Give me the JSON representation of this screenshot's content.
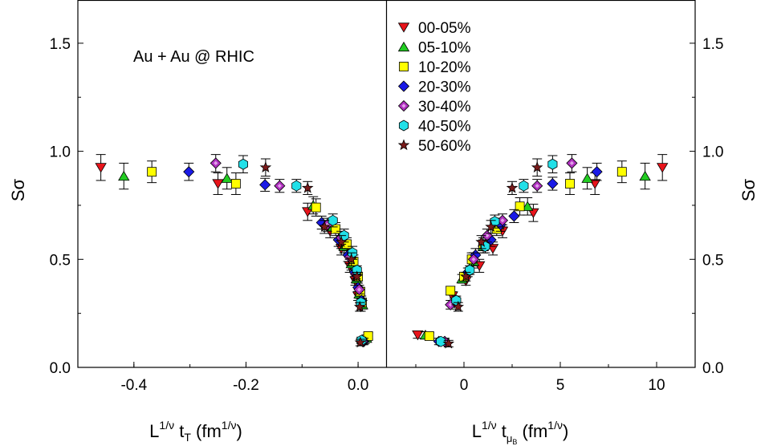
{
  "chart_data": [
    {
      "type": "scatter",
      "panel": "left",
      "xlabel": "L^{1/ν} t_T (fm^{1/ν})",
      "ylabel": "Sσ",
      "xlim": [
        -0.5,
        0.05
      ],
      "ylim": [
        0.0,
        1.7
      ],
      "xticks": [
        "-0.4",
        "-0.2",
        "0.0"
      ],
      "xtick_values": [
        -0.4,
        -0.2,
        0.0
      ],
      "yticks": [
        "0.0",
        "0.5",
        "1.0",
        "1.5"
      ],
      "ytick_values": [
        0.0,
        0.5,
        1.0,
        1.5
      ],
      "annotation": "Au + Au @ RHIC",
      "series": [
        {
          "name": "00-05%",
          "points": [
            [
              -0.459,
              0.925,
              0.06
            ],
            [
              -0.25,
              0.85,
              0.05
            ],
            [
              -0.09,
              0.72,
              0.04
            ],
            [
              -0.05,
              0.63,
              0.03
            ],
            [
              -0.03,
              0.55,
              0.03
            ],
            [
              -0.015,
              0.47,
              0.03
            ],
            [
              -0.005,
              0.4,
              0.02
            ],
            [
              0.0,
              0.33,
              0.02
            ],
            [
              0.005,
              0.28,
              0.02
            ],
            [
              0.012,
              0.125,
              0.015
            ]
          ]
        },
        {
          "name": "05-10%",
          "points": [
            [
              -0.418,
              0.885,
              0.06
            ],
            [
              -0.234,
              0.875,
              0.05
            ],
            [
              -0.08,
              0.75,
              0.04
            ],
            [
              -0.045,
              0.65,
              0.03
            ],
            [
              -0.025,
              0.56,
              0.03
            ],
            [
              -0.012,
              0.48,
              0.03
            ],
            [
              -0.003,
              0.41,
              0.02
            ],
            [
              0.002,
              0.34,
              0.02
            ],
            [
              0.008,
              0.29,
              0.02
            ],
            [
              0.015,
              0.135,
              0.015
            ]
          ]
        },
        {
          "name": "10-20%",
          "points": [
            [
              -0.368,
              0.905,
              0.05
            ],
            [
              -0.218,
              0.85,
              0.05
            ],
            [
              -0.075,
              0.74,
              0.04
            ],
            [
              -0.04,
              0.64,
              0.03
            ],
            [
              -0.02,
              0.57,
              0.03
            ],
            [
              -0.008,
              0.49,
              0.03
            ],
            [
              0.0,
              0.42,
              0.02
            ],
            [
              0.004,
              0.35,
              0.02
            ],
            [
              0.007,
              0.3,
              0.02
            ],
            [
              0.018,
              0.145,
              0.015
            ]
          ]
        },
        {
          "name": "20-30%",
          "points": [
            [
              -0.302,
              0.905,
              0.04
            ],
            [
              -0.166,
              0.845,
              0.03
            ],
            [
              -0.065,
              0.67,
              0.03
            ],
            [
              -0.035,
              0.59,
              0.03
            ],
            [
              -0.018,
              0.52,
              0.03
            ],
            [
              -0.006,
              0.44,
              0.02
            ],
            [
              0.0,
              0.37,
              0.02
            ],
            [
              0.006,
              0.31,
              0.02
            ],
            [
              0.01,
              0.12,
              0.015
            ]
          ]
        },
        {
          "name": "30-40%",
          "points": [
            [
              -0.254,
              0.945,
              0.04
            ],
            [
              -0.14,
              0.84,
              0.03
            ],
            [
              -0.055,
              0.66,
              0.03
            ],
            [
              -0.03,
              0.6,
              0.03
            ],
            [
              -0.015,
              0.51,
              0.03
            ],
            [
              -0.004,
              0.43,
              0.02
            ],
            [
              0.002,
              0.36,
              0.02
            ],
            [
              0.008,
              0.12,
              0.015
            ]
          ]
        },
        {
          "name": "40-50%",
          "points": [
            [
              -0.205,
              0.94,
              0.04
            ],
            [
              -0.11,
              0.84,
              0.03
            ],
            [
              -0.045,
              0.68,
              0.03
            ],
            [
              -0.025,
              0.61,
              0.03
            ],
            [
              -0.01,
              0.53,
              0.03
            ],
            [
              -0.002,
              0.45,
              0.02
            ],
            [
              0.005,
              0.3,
              0.02
            ],
            [
              0.006,
              0.125,
              0.015
            ]
          ]
        },
        {
          "name": "50-60%",
          "points": [
            [
              -0.165,
              0.925,
              0.04
            ],
            [
              -0.09,
              0.83,
              0.03
            ],
            [
              -0.06,
              0.65,
              0.03
            ],
            [
              -0.03,
              0.58,
              0.03
            ],
            [
              -0.012,
              0.5,
              0.03
            ],
            [
              -0.002,
              0.42,
              0.02
            ],
            [
              0.003,
              0.28,
              0.02
            ],
            [
              0.004,
              0.115,
              0.015
            ]
          ]
        }
      ]
    },
    {
      "type": "scatter",
      "panel": "right",
      "xlabel": "L^{1/ν} t_{μB} (fm^{1/ν})",
      "ylabel": "Sσ",
      "xlim": [
        -4.0,
        12.0
      ],
      "ylim": [
        0.0,
        1.7
      ],
      "xticks": [
        "0",
        "5",
        "10"
      ],
      "xtick_values": [
        0,
        5,
        10
      ],
      "yticks": [
        "0.0",
        "0.5",
        "1.0",
        "1.5"
      ],
      "ytick_values": [
        0.0,
        0.5,
        1.0,
        1.5
      ],
      "series": [
        {
          "name": "00-05%",
          "points": [
            [
              10.3,
              0.925,
              0.06
            ],
            [
              6.8,
              0.85,
              0.05
            ],
            [
              3.6,
              0.715,
              0.04
            ],
            [
              2.0,
              0.63,
              0.03
            ],
            [
              1.5,
              0.55,
              0.03
            ],
            [
              0.8,
              0.47,
              0.03
            ],
            [
              0.1,
              0.4,
              0.02
            ],
            [
              -0.6,
              0.33,
              0.02
            ],
            [
              -2.4,
              0.15,
              0.015
            ]
          ]
        },
        {
          "name": "05-10%",
          "points": [
            [
              9.4,
              0.885,
              0.06
            ],
            [
              6.4,
              0.875,
              0.05
            ],
            [
              3.3,
              0.745,
              0.04
            ],
            [
              1.8,
              0.66,
              0.03
            ],
            [
              1.0,
              0.56,
              0.03
            ],
            [
              0.5,
              0.49,
              0.03
            ],
            [
              -0.1,
              0.41,
              0.02
            ],
            [
              -2.0,
              0.15,
              0.015
            ]
          ]
        },
        {
          "name": "10-20%",
          "points": [
            [
              8.2,
              0.905,
              0.05
            ],
            [
              5.5,
              0.85,
              0.05
            ],
            [
              2.9,
              0.745,
              0.04
            ],
            [
              1.7,
              0.64,
              0.03
            ],
            [
              1.0,
              0.57,
              0.03
            ],
            [
              0.4,
              0.5,
              0.03
            ],
            [
              0.0,
              0.42,
              0.02
            ],
            [
              -0.7,
              0.355,
              0.02
            ],
            [
              -1.8,
              0.145,
              0.015
            ]
          ]
        },
        {
          "name": "20-30%",
          "points": [
            [
              6.9,
              0.905,
              0.04
            ],
            [
              4.6,
              0.85,
              0.03
            ],
            [
              2.6,
              0.7,
              0.03
            ],
            [
              1.9,
              0.66,
              0.03
            ],
            [
              1.4,
              0.59,
              0.03
            ],
            [
              0.6,
              0.52,
              0.03
            ],
            [
              0.2,
              0.44,
              0.02
            ],
            [
              -0.5,
              0.3,
              0.02
            ],
            [
              -1.3,
              0.12,
              0.015
            ]
          ]
        },
        {
          "name": "30-40%",
          "points": [
            [
              5.6,
              0.945,
              0.04
            ],
            [
              3.8,
              0.84,
              0.03
            ],
            [
              2.0,
              0.68,
              0.03
            ],
            [
              1.2,
              0.61,
              0.03
            ],
            [
              0.5,
              0.5,
              0.03
            ],
            [
              -0.7,
              0.29,
              0.02
            ],
            [
              -1.0,
              0.12,
              0.015
            ]
          ]
        },
        {
          "name": "40-50%",
          "points": [
            [
              4.6,
              0.94,
              0.04
            ],
            [
              3.1,
              0.84,
              0.03
            ],
            [
              1.6,
              0.675,
              0.03
            ],
            [
              1.1,
              0.56,
              0.03
            ],
            [
              0.3,
              0.45,
              0.02
            ],
            [
              -0.4,
              0.31,
              0.02
            ],
            [
              -1.2,
              0.12,
              0.015
            ]
          ]
        },
        {
          "name": "50-60%",
          "points": [
            [
              3.8,
              0.925,
              0.04
            ],
            [
              2.5,
              0.83,
              0.03
            ],
            [
              1.4,
              0.65,
              0.03
            ],
            [
              0.9,
              0.58,
              0.03
            ],
            [
              0.1,
              0.42,
              0.02
            ],
            [
              -0.3,
              0.28,
              0.02
            ],
            [
              -0.8,
              0.11,
              0.015
            ]
          ]
        }
      ]
    }
  ],
  "legend": [
    {
      "label": "00-05%",
      "marker": "triangle-down",
      "color": "#e8141b"
    },
    {
      "label": "05-10%",
      "marker": "triangle-up",
      "color": "#22cc22"
    },
    {
      "label": "10-20%",
      "marker": "square",
      "color": "#ffff00"
    },
    {
      "label": "20-30%",
      "marker": "diamond",
      "color": "#1a1ae6"
    },
    {
      "label": "30-40%",
      "marker": "diamond-dot",
      "color": "#b030c0"
    },
    {
      "label": "40-50%",
      "marker": "hexagon",
      "color": "#22e0e8"
    },
    {
      "label": "50-60%",
      "marker": "star",
      "color": "#7a1a1a"
    }
  ]
}
